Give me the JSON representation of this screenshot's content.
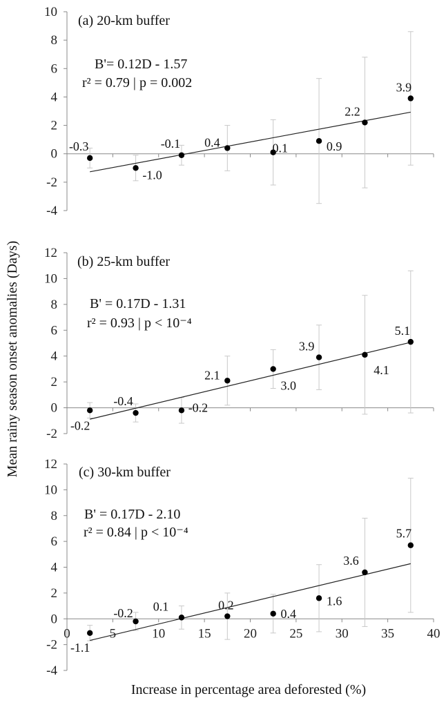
{
  "figure": {
    "ylabel": "Mean rainy season onset anomalies (Days)",
    "xlabel": "Increase in percentage area deforested (%)"
  },
  "chart_data": [
    {
      "type": "scatter",
      "title": "(a) 20-km buffer",
      "equation": "B'= 0.12D - 1.57",
      "stats": "r² = 0.79  | p = 0.002",
      "x": [
        2.5,
        7.5,
        12.5,
        17.5,
        22.5,
        27.5,
        32.5,
        37.5
      ],
      "y": [
        -0.3,
        -1.0,
        -0.1,
        0.4,
        0.1,
        0.9,
        2.2,
        3.9
      ],
      "labels": [
        "-0.3",
        "-1.0",
        "-0.1",
        "0.4",
        "0.1",
        "0.9",
        "2.2",
        "3.9"
      ],
      "error": [
        0.7,
        0.9,
        0.7,
        1.6,
        2.3,
        4.4,
        4.6,
        4.7
      ],
      "trendline": {
        "slope": 0.12,
        "intercept": -1.57
      },
      "ylim": [
        -4,
        10
      ],
      "yticks": [
        -4,
        -2,
        0,
        2,
        4,
        6,
        8,
        10
      ],
      "show_x_ticks": false
    },
    {
      "type": "scatter",
      "title": "(b) 25-km buffer",
      "equation": "B' = 0.17D - 1.31",
      "stats": "r² = 0.93  |  p < 10⁻⁴",
      "x": [
        2.5,
        7.5,
        12.5,
        17.5,
        22.5,
        27.5,
        32.5,
        37.5
      ],
      "y": [
        -0.2,
        -0.4,
        -0.2,
        2.1,
        3.0,
        3.9,
        4.1,
        5.1
      ],
      "labels": [
        "-0.2",
        "-0.4",
        "-0.2",
        "2.1",
        "3.0",
        "3.9",
        "4.1",
        "5.1"
      ],
      "error": [
        0.6,
        0.7,
        1.0,
        1.9,
        1.5,
        2.5,
        4.6,
        5.5
      ],
      "trendline": {
        "slope": 0.17,
        "intercept": -1.31
      },
      "ylim": [
        -2,
        12
      ],
      "yticks": [
        -2,
        0,
        2,
        4,
        6,
        8,
        10,
        12
      ],
      "show_x_ticks": false
    },
    {
      "type": "scatter",
      "title": "(c) 30-km buffer",
      "equation": "B' = 0.17D - 2.10",
      "stats": "r² = 0.84 | p < 10⁻⁴",
      "x": [
        2.5,
        7.5,
        12.5,
        17.5,
        22.5,
        27.5,
        32.5,
        37.5
      ],
      "y": [
        -1.1,
        -0.2,
        0.1,
        0.2,
        0.4,
        1.6,
        3.6,
        5.7
      ],
      "labels": [
        "-1.1",
        "-0.2",
        "0.1",
        "0.2",
        "0.4",
        "1.6",
        "3.6",
        "5.7"
      ],
      "error": [
        0.6,
        0.7,
        0.9,
        1.8,
        1.5,
        2.6,
        4.2,
        5.2
      ],
      "trendline": {
        "slope": 0.17,
        "intercept": -2.1
      },
      "ylim": [
        -4,
        12
      ],
      "yticks": [
        -4,
        -2,
        0,
        2,
        4,
        6,
        8,
        10,
        12
      ],
      "xlim": [
        0,
        40
      ],
      "xticks": [
        0,
        5,
        10,
        15,
        20,
        25,
        30,
        35,
        40
      ],
      "show_x_ticks": true
    }
  ]
}
